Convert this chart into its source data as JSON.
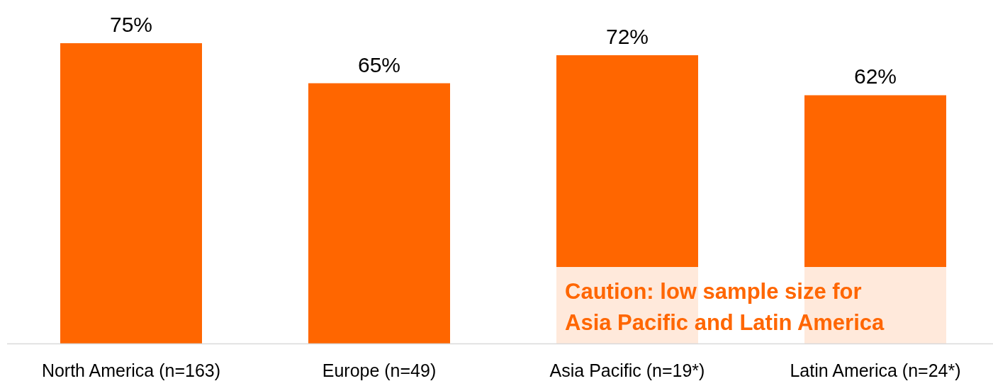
{
  "chart_data": {
    "type": "bar",
    "categories": [
      "North America (n=163)",
      "Europe (n=49)",
      "Asia Pacific (n=19*)",
      "Latin America (n=24*)"
    ],
    "values": [
      75,
      65,
      72,
      62
    ],
    "value_labels": [
      "75%",
      "65%",
      "72%",
      "62%"
    ],
    "color": "#ff6600",
    "annotations": [
      "Caution: low sample size for\nAsia Pacific and Latin America"
    ]
  }
}
